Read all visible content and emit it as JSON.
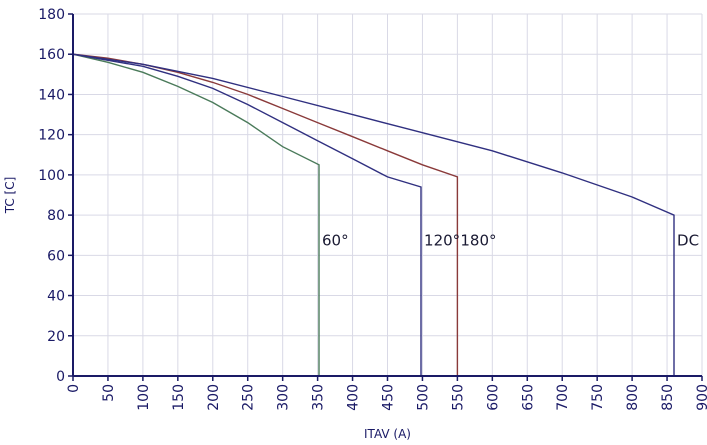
{
  "chart_data": {
    "type": "line",
    "xlabel": "ITAV (A)",
    "ylabel": "TC [C]",
    "xlim": [
      0,
      900
    ],
    "ylim": [
      0,
      180
    ],
    "x_ticks": [
      0,
      50,
      100,
      150,
      200,
      250,
      300,
      350,
      400,
      450,
      500,
      550,
      600,
      650,
      700,
      750,
      800,
      850,
      900
    ],
    "y_ticks": [
      0,
      20,
      40,
      60,
      80,
      100,
      120,
      140,
      160,
      180
    ],
    "grid": true,
    "grid_color": "#d9d9e6",
    "axis_color": "#1a1a66",
    "series": [
      {
        "name": "60°",
        "color": "#4a7a5a",
        "points": [
          [
            0,
            160
          ],
          [
            50,
            156
          ],
          [
            100,
            151
          ],
          [
            150,
            144
          ],
          [
            200,
            136
          ],
          [
            250,
            126
          ],
          [
            300,
            114
          ],
          [
            352,
            105
          ],
          [
            352,
            0
          ]
        ]
      },
      {
        "name": "120°",
        "color": "#303080",
        "points": [
          [
            0,
            160
          ],
          [
            50,
            157
          ],
          [
            100,
            154
          ],
          [
            150,
            149
          ],
          [
            200,
            143
          ],
          [
            250,
            135
          ],
          [
            300,
            126
          ],
          [
            350,
            117
          ],
          [
            400,
            108
          ],
          [
            450,
            99
          ],
          [
            498,
            94
          ],
          [
            498,
            0
          ]
        ]
      },
      {
        "name": "180°",
        "color": "#8a3a3a",
        "points": [
          [
            0,
            160
          ],
          [
            50,
            158
          ],
          [
            100,
            155
          ],
          [
            150,
            151
          ],
          [
            200,
            146
          ],
          [
            250,
            140
          ],
          [
            300,
            133
          ],
          [
            350,
            126
          ],
          [
            400,
            119
          ],
          [
            450,
            112
          ],
          [
            500,
            105
          ],
          [
            550,
            99
          ],
          [
            550,
            0
          ]
        ]
      },
      {
        "name": "DC",
        "color": "#303080",
        "points": [
          [
            0,
            160
          ],
          [
            100,
            155
          ],
          [
            200,
            148
          ],
          [
            300,
            139
          ],
          [
            400,
            130
          ],
          [
            500,
            121
          ],
          [
            600,
            112
          ],
          [
            700,
            101
          ],
          [
            800,
            89
          ],
          [
            860,
            80
          ],
          [
            860,
            0
          ]
        ]
      }
    ]
  }
}
